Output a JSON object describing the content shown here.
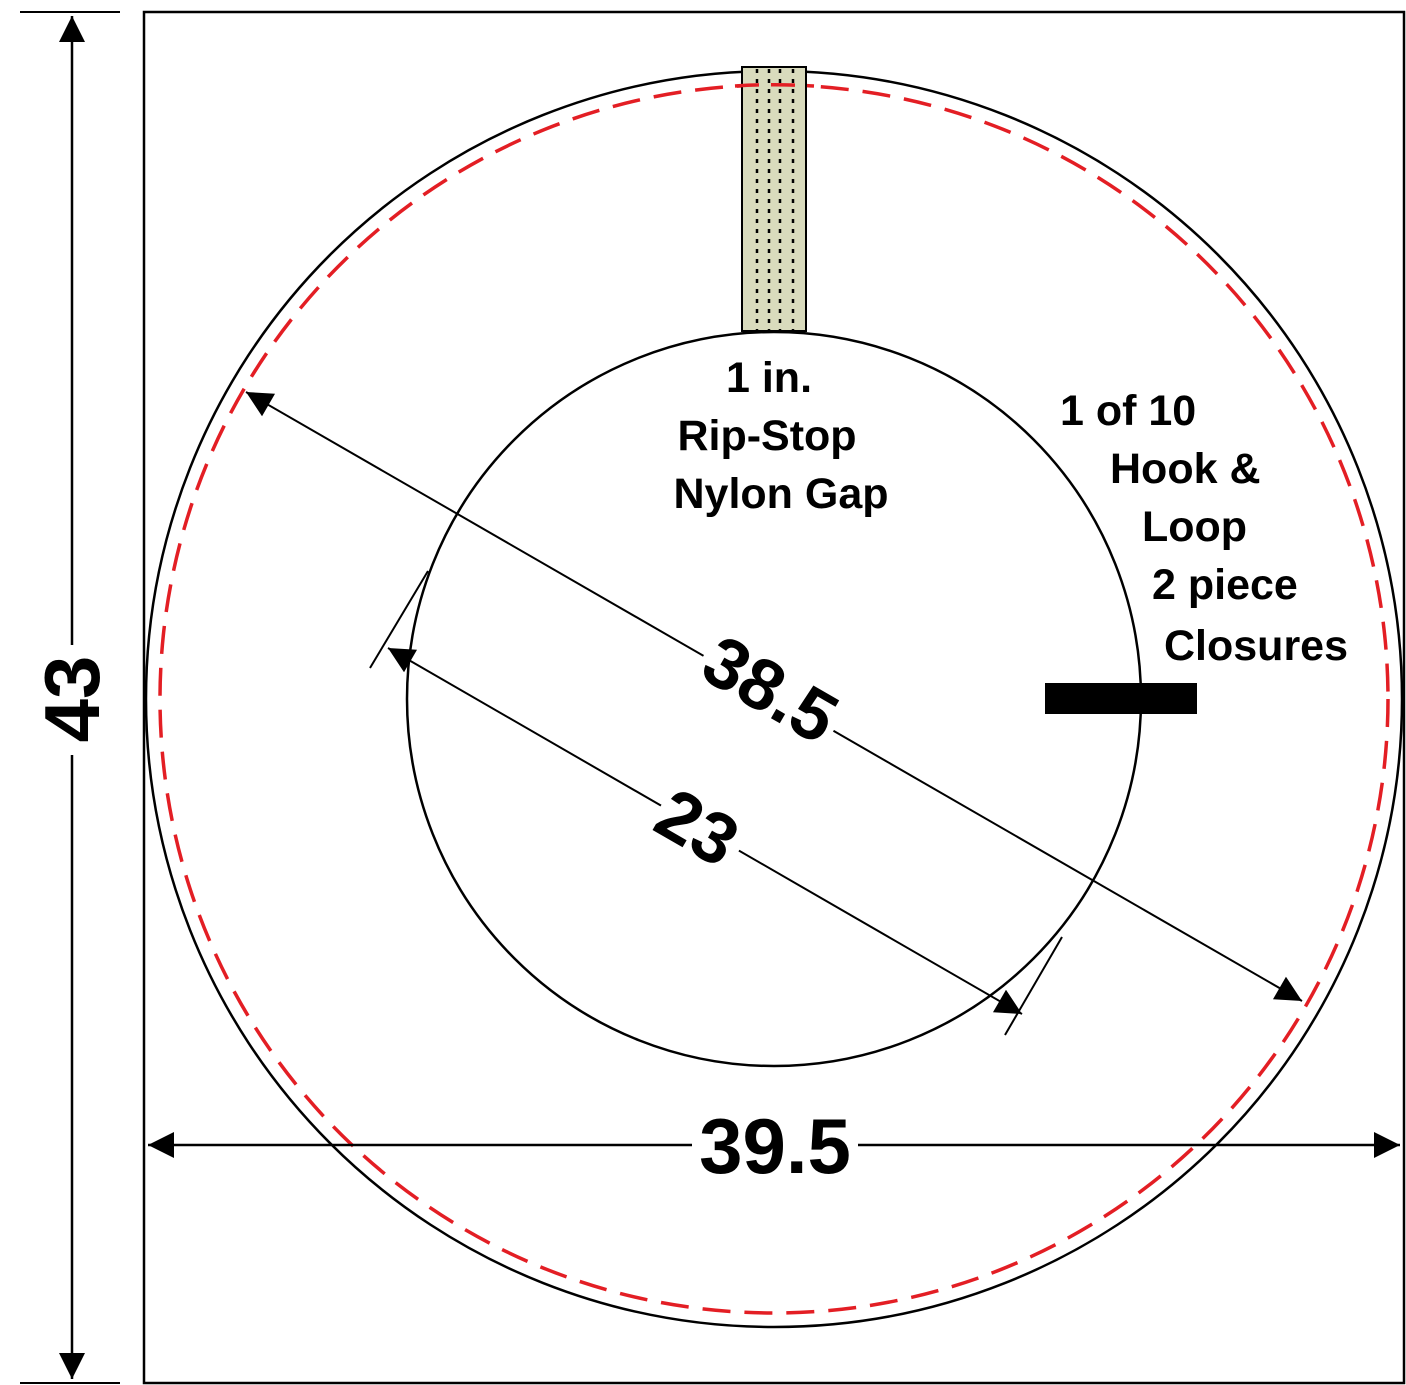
{
  "dimensions": {
    "height": "43",
    "width": "39.5",
    "outer_diameter": "38.5",
    "inner_diameter": "23"
  },
  "notes": {
    "gap": [
      "1 in.",
      "Rip-Stop",
      "Nylon Gap"
    ],
    "closures": [
      "1 of 10",
      "Hook &",
      "Loop",
      "2 piece",
      "Closures"
    ]
  },
  "colors": {
    "line": "#000000",
    "seam": "#e31e24",
    "gap_fill": "#d9dbbd",
    "background": "#ffffff"
  }
}
